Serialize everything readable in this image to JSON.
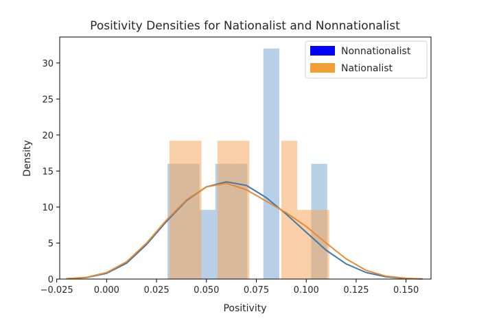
{
  "chart_data": {
    "type": "histogram",
    "title": "Positivity Densities for Nationalist and Nonnationalist",
    "xlabel": "Positivity",
    "ylabel": "Density",
    "xlim": [
      -0.0235,
      0.1625
    ],
    "ylim": [
      0,
      33.6
    ],
    "xticks": [
      -0.025,
      0.0,
      0.025,
      0.05,
      0.075,
      0.1,
      0.125,
      0.15
    ],
    "xtick_labels": [
      "−0.025",
      "0.000",
      "0.025",
      "0.050",
      "0.075",
      "0.100",
      "0.125",
      "0.150"
    ],
    "yticks": [
      0,
      5,
      10,
      15,
      20,
      25,
      30
    ],
    "ytick_labels": [
      "0",
      "5",
      "10",
      "15",
      "20",
      "25",
      "30"
    ],
    "grid": false,
    "legend_position": "top-right",
    "legend": [
      {
        "label": "Nonnationalist",
        "color": "#0000ff"
      },
      {
        "label": "Nationalist",
        "color": "#f0a035"
      }
    ],
    "series": [
      {
        "name": "Nonnationalist",
        "bar_color": "#6fa2cf",
        "line_color": "#3d77ae",
        "bar_opacity": 0.5,
        "bins": [
          {
            "x0": 0.0305,
            "x1": 0.0385,
            "density": 16
          },
          {
            "x0": 0.0385,
            "x1": 0.0465,
            "density": 16
          },
          {
            "x0": 0.0465,
            "x1": 0.0545,
            "density": 9.6
          },
          {
            "x0": 0.0545,
            "x1": 0.0625,
            "density": 16
          },
          {
            "x0": 0.0625,
            "x1": 0.0705,
            "density": 16
          },
          {
            "x0": 0.0705,
            "x1": 0.0785,
            "density": 0
          },
          {
            "x0": 0.0785,
            "x1": 0.0865,
            "density": 32
          },
          {
            "x0": 0.0865,
            "x1": 0.0945,
            "density": 0
          },
          {
            "x0": 0.0945,
            "x1": 0.1025,
            "density": 0
          },
          {
            "x0": 0.1025,
            "x1": 0.1105,
            "density": 16
          }
        ],
        "kde": [
          [
            -0.02,
            0.05
          ],
          [
            -0.01,
            0.22
          ],
          [
            0.0,
            0.8
          ],
          [
            0.01,
            2.2
          ],
          [
            0.02,
            4.8
          ],
          [
            0.03,
            8.0
          ],
          [
            0.04,
            10.9
          ],
          [
            0.05,
            12.8
          ],
          [
            0.06,
            13.5
          ],
          [
            0.07,
            13.0
          ],
          [
            0.08,
            11.3
          ],
          [
            0.09,
            9.0
          ],
          [
            0.1,
            6.5
          ],
          [
            0.11,
            4.0
          ],
          [
            0.12,
            2.1
          ],
          [
            0.13,
            0.9
          ],
          [
            0.14,
            0.3
          ],
          [
            0.15,
            0.08
          ],
          [
            0.158,
            0.02
          ]
        ]
      },
      {
        "name": "Nationalist",
        "bar_color": "#f5a55c",
        "line_color": "#e8892d",
        "bar_opacity": 0.55,
        "bins": [
          {
            "x0": 0.0315,
            "x1": 0.0395,
            "density": 19.2
          },
          {
            "x0": 0.0395,
            "x1": 0.0475,
            "density": 19.2
          },
          {
            "x0": 0.0475,
            "x1": 0.0555,
            "density": 0
          },
          {
            "x0": 0.0555,
            "x1": 0.0635,
            "density": 19.2
          },
          {
            "x0": 0.0635,
            "x1": 0.0715,
            "density": 19.2
          },
          {
            "x0": 0.0715,
            "x1": 0.0795,
            "density": 0
          },
          {
            "x0": 0.0795,
            "x1": 0.0875,
            "density": 0
          },
          {
            "x0": 0.0875,
            "x1": 0.0955,
            "density": 19.2
          },
          {
            "x0": 0.0955,
            "x1": 0.1035,
            "density": 9.6
          },
          {
            "x0": 0.1035,
            "x1": 0.1115,
            "density": 9.6
          }
        ],
        "kde": [
          [
            -0.02,
            0.05
          ],
          [
            -0.01,
            0.25
          ],
          [
            0.0,
            0.9
          ],
          [
            0.01,
            2.4
          ],
          [
            0.02,
            5.0
          ],
          [
            0.03,
            8.2
          ],
          [
            0.04,
            11.0
          ],
          [
            0.05,
            12.8
          ],
          [
            0.06,
            13.3
          ],
          [
            0.07,
            12.4
          ],
          [
            0.08,
            10.8
          ],
          [
            0.09,
            9.2
          ],
          [
            0.1,
            7.3
          ],
          [
            0.11,
            5.0
          ],
          [
            0.12,
            2.8
          ],
          [
            0.13,
            1.2
          ],
          [
            0.14,
            0.4
          ],
          [
            0.15,
            0.1
          ],
          [
            0.158,
            0.03
          ]
        ]
      }
    ]
  }
}
